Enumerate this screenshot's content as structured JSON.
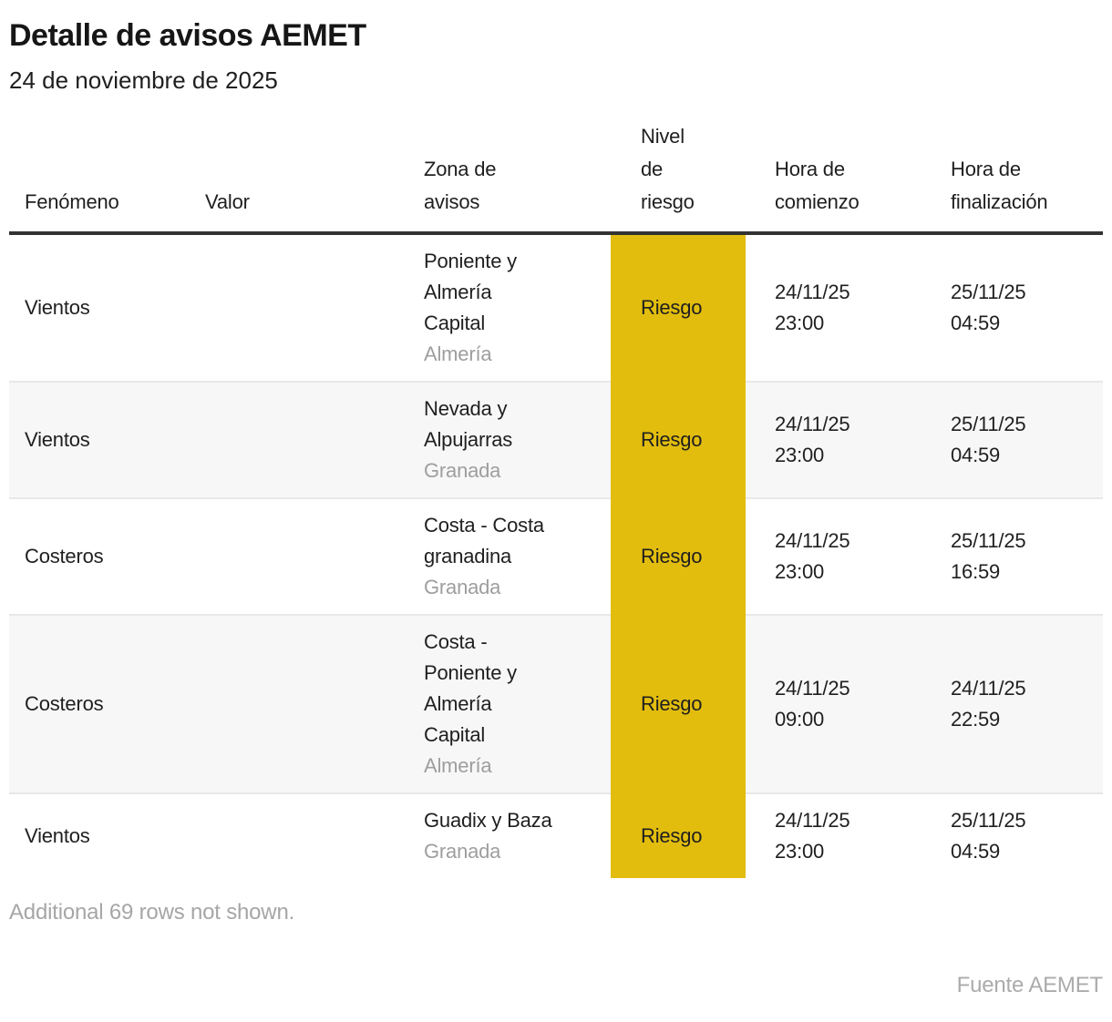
{
  "chart_data": {
    "type": "table",
    "title": "Detalle de avisos AEMET",
    "subtitle": "24 de noviembre de 2025",
    "columns": [
      "Fenómeno",
      "Valor",
      "Zona de avisos",
      "Nivel de riesgo",
      "Hora de comienzo",
      "Hora de finalización"
    ],
    "header_display": {
      "fenomeno": "Fenómeno",
      "valor": "Valor",
      "zona": "Zona de\navisos",
      "nivel": "Nivel\nde\nriesgo",
      "comienzo": "Hora de\ncomienzo",
      "fin": "Hora de\nfinalización"
    },
    "rows": [
      {
        "fenomeno": "Vientos",
        "valor": "",
        "zona": "Poniente y\nAlmería\nCapital",
        "provincia": "Almería",
        "nivel": "Riesgo",
        "comienzo": "24/11/25\n23:00",
        "fin": "25/11/25\n04:59"
      },
      {
        "fenomeno": "Vientos",
        "valor": "",
        "zona": "Nevada y\nAlpujarras",
        "provincia": "Granada",
        "nivel": "Riesgo",
        "comienzo": "24/11/25\n23:00",
        "fin": "25/11/25\n04:59"
      },
      {
        "fenomeno": "Costeros",
        "valor": "",
        "zona": "Costa - Costa\ngranadina",
        "provincia": "Granada",
        "nivel": "Riesgo",
        "comienzo": "24/11/25\n23:00",
        "fin": "25/11/25\n16:59"
      },
      {
        "fenomeno": "Costeros",
        "valor": "",
        "zona": "Costa -\nPoniente y\nAlmería\nCapital",
        "provincia": "Almería",
        "nivel": "Riesgo",
        "comienzo": "24/11/25\n09:00",
        "fin": "24/11/25\n22:59"
      },
      {
        "fenomeno": "Vientos",
        "valor": "",
        "zona": "Guadix y Baza",
        "provincia": "Granada",
        "nivel": "Riesgo",
        "comienzo": "24/11/25\n23:00",
        "fin": "25/11/25\n04:59"
      }
    ],
    "note": "Additional 69 rows not shown.",
    "source": "Fuente AEMET",
    "colors": {
      "risk_yellow": "#e2bd0e",
      "alt_row_gray": "#f7f7f7",
      "header_rule": "#333333",
      "muted_text": "#9e9e9e"
    },
    "layout": {
      "legend_position": "none",
      "grid": "horizontal-separators"
    }
  }
}
